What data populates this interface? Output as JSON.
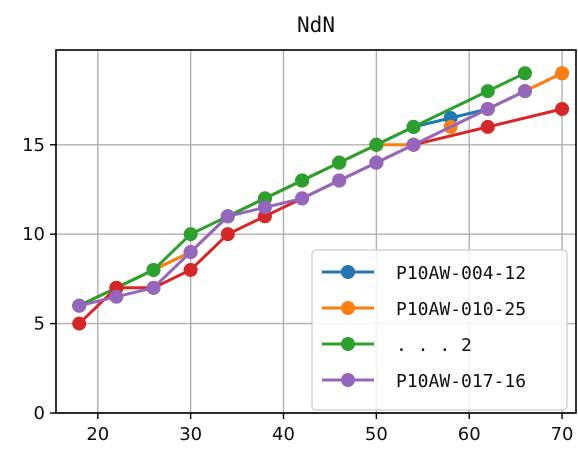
{
  "chart_data": {
    "type": "line",
    "title": "NdN",
    "xlabel": "",
    "ylabel": "",
    "xlim": [
      15.5,
      71.5
    ],
    "ylim": [
      0,
      20.3
    ],
    "xticks": [
      20,
      30,
      40,
      50,
      60,
      70
    ],
    "yticks": [
      0,
      5,
      10,
      15
    ],
    "grid": true,
    "legend_position": "lower-right",
    "series": [
      {
        "name": "P10AW-004-12",
        "color": "#1f77b4",
        "legend": true,
        "x": [
          18,
          22,
          26,
          30,
          34,
          38,
          42,
          46,
          50,
          54,
          58,
          62,
          66,
          70
        ],
        "y": [
          6,
          7,
          8,
          9,
          11,
          12,
          13,
          14,
          15,
          16,
          16.5,
          17,
          18,
          19
        ]
      },
      {
        "name": "P10AW-010-25",
        "color": "#ff7f0e",
        "legend": true,
        "x": [
          18,
          22,
          26,
          30,
          34,
          38,
          42,
          46,
          50,
          54,
          58,
          62,
          66,
          70
        ],
        "y": [
          6,
          7,
          8,
          9,
          11,
          12,
          13,
          14,
          15,
          15,
          16,
          17,
          18,
          19
        ]
      },
      {
        "name": ". . .  2",
        "color": "#2ca02c",
        "legend": true,
        "x": [
          18,
          22,
          26,
          30,
          34,
          38,
          42,
          46,
          50,
          54,
          62,
          66
        ],
        "y": [
          6,
          7,
          8,
          10,
          11,
          12,
          13,
          14,
          15,
          16,
          18,
          19
        ]
      },
      {
        "name": "",
        "color": "#d62728",
        "legend": false,
        "x": [
          18,
          22,
          26,
          30,
          34,
          38,
          42,
          46,
          50,
          54,
          62,
          70
        ],
        "y": [
          5,
          7,
          7,
          8,
          10,
          11,
          12,
          13,
          14,
          15,
          16,
          17
        ]
      },
      {
        "name": "P10AW-017-16",
        "color": "#9467bd",
        "legend": true,
        "x": [
          18,
          22,
          26,
          30,
          34,
          38,
          42,
          46,
          50,
          54,
          62,
          66
        ],
        "y": [
          6,
          6.5,
          7,
          9,
          11,
          11.5,
          12,
          13,
          14,
          15,
          17,
          18
        ]
      }
    ]
  }
}
